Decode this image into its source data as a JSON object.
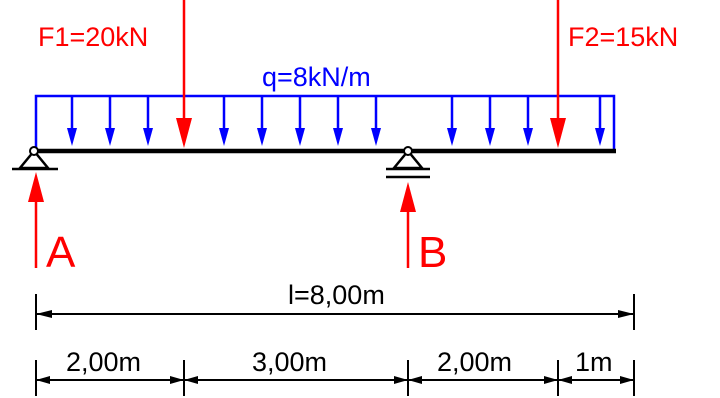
{
  "loads": {
    "f1": {
      "label": "F1=20kN",
      "position_m": 2
    },
    "f2": {
      "label": "F2=15kN",
      "position_m": 7
    },
    "q": {
      "label": "q=8kN/m",
      "from_m": 0,
      "to_m": 8
    }
  },
  "supports": {
    "a": {
      "label": "A",
      "position_m": 0,
      "type": "pin"
    },
    "b": {
      "label": "B",
      "position_m": 5,
      "type": "roller"
    }
  },
  "dimensions": {
    "total": {
      "label": "l=8,00m",
      "length_m": 8
    },
    "segments": [
      {
        "label": "2,00m",
        "length_m": 2
      },
      {
        "label": "3,00m",
        "length_m": 3
      },
      {
        "label": "2,00m",
        "length_m": 2
      },
      {
        "label": "1m",
        "length_m": 1
      }
    ]
  },
  "colors": {
    "force": "#ff0000",
    "distributed_load": "#0000ff",
    "beam": "#000000"
  }
}
